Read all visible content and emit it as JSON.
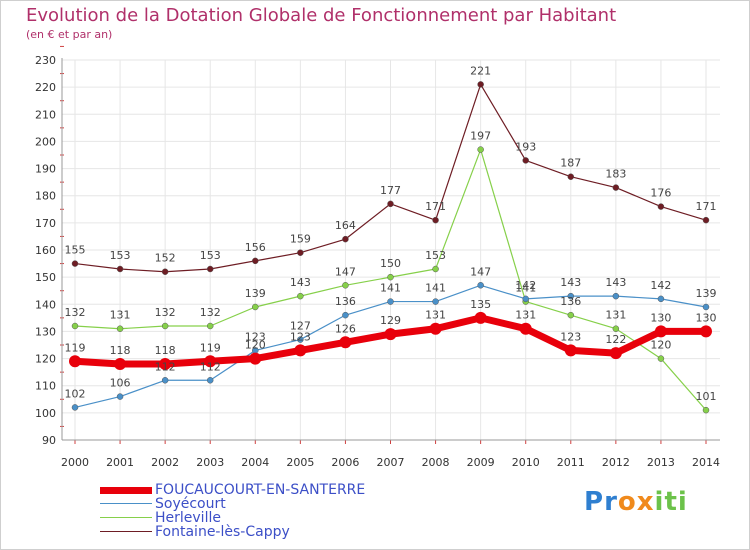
{
  "chart_data": {
    "type": "line",
    "title": "Evolution de la Dotation Globale de Fonctionnement par Habitant",
    "subtitle": "(en € et par an)",
    "x": [
      "2000",
      "2001",
      "2002",
      "2003",
      "2004",
      "2005",
      "2006",
      "2007",
      "2008",
      "2009",
      "2010",
      "2011",
      "2012",
      "2013",
      "2014"
    ],
    "ylim": [
      90,
      230
    ],
    "yticks": [
      90,
      100,
      110,
      120,
      130,
      140,
      150,
      160,
      170,
      180,
      190,
      200,
      210,
      220,
      230
    ],
    "grid": true,
    "legend_position": "bottom-left",
    "series": [
      {
        "name": "FOUCAUCOURT-EN-SANTERRE",
        "color": "#e8000b",
        "width": 7,
        "marker": 6,
        "values": [
          119,
          118,
          118,
          119,
          120,
          123,
          126,
          129,
          131,
          135,
          131,
          123,
          122,
          130,
          130
        ]
      },
      {
        "name": "Soyécourt",
        "color": "#4a90c8",
        "width": 1.2,
        "marker": 3,
        "values": [
          102,
          106,
          112,
          112,
          123,
          127,
          136,
          141,
          141,
          147,
          142,
          143,
          143,
          142,
          139
        ]
      },
      {
        "name": "Herleville",
        "color": "#86d04a",
        "width": 1.2,
        "marker": 3,
        "values": [
          132,
          131,
          132,
          132,
          139,
          143,
          147,
          150,
          153,
          197,
          141,
          136,
          131,
          120,
          101
        ]
      },
      {
        "name": "Fontaine-lès-Cappy",
        "color": "#6e1d24",
        "width": 1.2,
        "marker": 3,
        "values": [
          155,
          153,
          152,
          153,
          156,
          159,
          164,
          177,
          171,
          221,
          193,
          187,
          183,
          176,
          171
        ]
      }
    ],
    "labels": [
      {
        "series": 0,
        "values": [
          119,
          118,
          118,
          119,
          120,
          123,
          126,
          129,
          131,
          135,
          131,
          123,
          122,
          130,
          130
        ]
      },
      {
        "series": 1,
        "values": [
          102,
          106,
          112,
          112,
          123,
          127,
          136,
          141,
          141,
          147,
          142,
          143,
          143,
          142,
          139
        ]
      },
      {
        "series": 2,
        "values": [
          132,
          131,
          132,
          132,
          139,
          143,
          147,
          150,
          153,
          197,
          141,
          136,
          131,
          120,
          101
        ]
      },
      {
        "series": 3,
        "values": [
          155,
          153,
          152,
          153,
          156,
          159,
          164,
          177,
          171,
          221,
          193,
          187,
          183,
          176,
          171
        ]
      }
    ]
  },
  "logo": {
    "letters": [
      "P",
      "r",
      "o",
      "x",
      "i",
      "t",
      "i"
    ],
    "colors": [
      "#2f7fd0",
      "#2f7fd0",
      "#f08a1c",
      "#f08a1c",
      "#6cc24a",
      "#6cc24a",
      "#6cc24a"
    ]
  }
}
